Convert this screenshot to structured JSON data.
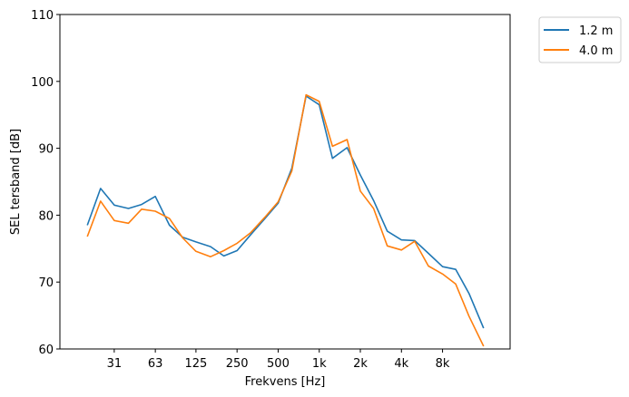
{
  "chart_data": {
    "type": "line",
    "xlabel": "Frekvens [Hz]",
    "ylabel": "SEL tersband [dB]",
    "x_scale": "log",
    "xlim": [
      12.6,
      25000
    ],
    "ylim": [
      60,
      110
    ],
    "yticks": [
      60,
      70,
      80,
      90,
      100,
      110
    ],
    "xticks": [
      {
        "value": 31.5,
        "label": "31"
      },
      {
        "value": 63,
        "label": "63"
      },
      {
        "value": 125,
        "label": "125"
      },
      {
        "value": 250,
        "label": "250"
      },
      {
        "value": 500,
        "label": "500"
      },
      {
        "value": 1000,
        "label": "1k"
      },
      {
        "value": 2000,
        "label": "2k"
      },
      {
        "value": 4000,
        "label": "4k"
      },
      {
        "value": 8000,
        "label": "8k"
      }
    ],
    "x": [
      20,
      25,
      31.5,
      40,
      50,
      63,
      80,
      100,
      125,
      160,
      200,
      250,
      315,
      400,
      500,
      630,
      800,
      1000,
      1250,
      1600,
      2000,
      2500,
      3150,
      4000,
      5000,
      6300,
      8000,
      10000,
      12500,
      16000
    ],
    "legend_position": "outside-top-right",
    "grid": false,
    "series": [
      {
        "name": "1.2 m",
        "color": "#1f77b4",
        "values": [
          78.5,
          84.0,
          81.5,
          81.0,
          81.6,
          82.8,
          78.5,
          76.7,
          76.0,
          75.3,
          73.9,
          74.7,
          77.1,
          79.5,
          81.8,
          87.0,
          97.8,
          96.5,
          88.5,
          90.1,
          86.0,
          82.2,
          77.6,
          76.3,
          76.2,
          74.3,
          72.3,
          71.9,
          68.3,
          63.1
        ]
      },
      {
        "name": "4.0 m",
        "color": "#ff7f0e",
        "values": [
          76.8,
          82.1,
          79.2,
          78.8,
          80.9,
          80.6,
          79.5,
          76.6,
          74.6,
          73.8,
          74.7,
          75.8,
          77.4,
          79.7,
          82.0,
          86.6,
          98.0,
          97.0,
          90.3,
          91.3,
          83.6,
          81.0,
          75.4,
          74.8,
          76.1,
          72.4,
          71.2,
          69.7,
          64.9,
          60.4
        ]
      }
    ]
  }
}
